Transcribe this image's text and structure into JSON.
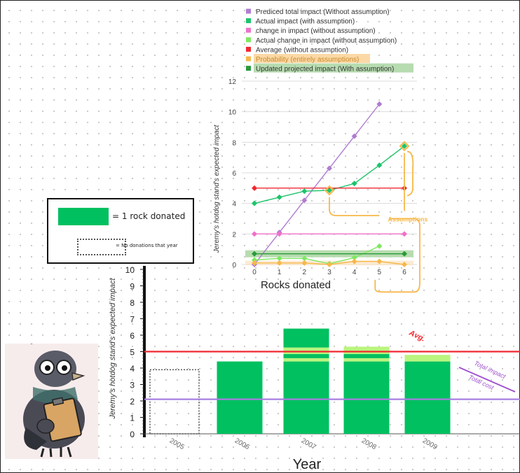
{
  "top_chart_legend": [
    {
      "label": "Prediced total impact (Without assumption)",
      "color": "#b07cd0"
    },
    {
      "label": "Actual impact (with assumption)",
      "color": "#1cc46a"
    },
    {
      "label": "change in impact (without assumption)",
      "color": "#f070c8"
    },
    {
      "label": "Actual change in impact (without assumption)",
      "color": "#7ee860"
    },
    {
      "label": "Average (without assumption)",
      "color": "#f02830"
    },
    {
      "label": "Probability (entirely assumptions)",
      "color": "#f7b84a",
      "highlight": "#fbd9a6"
    },
    {
      "label": "Updated projected impact (With assumption)",
      "color": "#2a9a3a",
      "highlight": "#b7dcb0"
    }
  ],
  "bottom_legend": {
    "solid_label": "= 1 rock donated",
    "dashed_label": "= No donations that year"
  },
  "annotations": {
    "assumptions": "Assumptions",
    "avg": "Avg.",
    "total_impact": "Total impact",
    "total_cost": "Total cost"
  },
  "chart_data": [
    {
      "type": "line",
      "xlabel": "Rocks donated",
      "ylabel": "Jeremy's hotdog stand's expected impact",
      "x": [
        0,
        1,
        2,
        3,
        4,
        5,
        6
      ],
      "ylim": [
        0,
        12
      ],
      "yticks": [
        0,
        2,
        4,
        6,
        8,
        10,
        12
      ],
      "grid": true,
      "legend_position": "top",
      "series": [
        {
          "name": "Prediced total impact (Without assumption)",
          "color": "#b07cd0",
          "x": [
            0,
            1,
            2,
            3,
            4,
            5
          ],
          "y": [
            0,
            2.1,
            4.2,
            6.3,
            8.4,
            10.5
          ]
        },
        {
          "name": "Actual impact (with assumption)",
          "color": "#1cc46a",
          "x": [
            0,
            1,
            2,
            3,
            4,
            5,
            6
          ],
          "y": [
            4.0,
            4.4,
            4.8,
            4.85,
            5.3,
            6.5,
            7.75
          ]
        },
        {
          "name": "change in impact (without assumption)",
          "color": "#f070c8",
          "x": [
            0,
            1,
            6
          ],
          "y": [
            2,
            2,
            2
          ]
        },
        {
          "name": "Actual change in impact (without assumption)",
          "color": "#7ee860",
          "x": [
            0,
            1,
            2,
            3,
            4,
            5
          ],
          "y": [
            0.3,
            0.4,
            0.4,
            0.05,
            0.45,
            1.2
          ]
        },
        {
          "name": "Average (without assumption)",
          "color": "#f02830",
          "x": [
            0,
            6
          ],
          "y": [
            5,
            5
          ]
        },
        {
          "name": "Probability (entirely assumptions)",
          "color": "#f7b84a",
          "x": [
            0,
            1,
            2,
            3,
            4,
            5,
            6
          ],
          "y": [
            0.1,
            0.1,
            0.1,
            0.0,
            0.2,
            0.2,
            0.0
          ],
          "extra_points": [
            [
              3,
              4.85
            ],
            [
              6,
              7.75
            ]
          ]
        },
        {
          "name": "Updated projected impact (With assumption)",
          "color": "#2a9a3a",
          "x": [
            0,
            6
          ],
          "y": [
            0.7,
            0.7
          ]
        }
      ]
    },
    {
      "type": "bar",
      "xlabel": "Year",
      "ylabel": "Jeremy's hotdog stand's expected impact",
      "categories": [
        "2005",
        "2006",
        "2007",
        "2008",
        "2009"
      ],
      "ylim": [
        0,
        10
      ],
      "yticks": [
        0,
        1,
        2,
        3,
        4,
        5,
        6,
        7,
        8,
        9,
        10
      ],
      "values": [
        0,
        4.4,
        6.4,
        5.3,
        4.8
      ],
      "no_donation_value": 3.9,
      "segments": [
        [],
        [
          {
            "from": 0,
            "to": 4.4,
            "color": "#00c060"
          }
        ],
        [
          {
            "from": 0,
            "to": 4.4,
            "color": "#00c060"
          },
          {
            "from": 4.4,
            "to": 4.6,
            "color": "#b9f57e"
          },
          {
            "from": 4.6,
            "to": 4.85,
            "color": "#00c060"
          },
          {
            "from": 4.85,
            "to": 5.25,
            "color": "#b9f57e"
          },
          {
            "from": 5.25,
            "to": 6.4,
            "color": "#00c060"
          }
        ],
        [
          {
            "from": 0,
            "to": 4.4,
            "color": "#00c060"
          },
          {
            "from": 4.4,
            "to": 4.6,
            "color": "#b9f57e"
          },
          {
            "from": 4.6,
            "to": 4.85,
            "color": "#00c060"
          },
          {
            "from": 4.85,
            "to": 5.3,
            "color": "#b9f57e"
          }
        ],
        [
          {
            "from": 0,
            "to": 4.4,
            "color": "#00c060"
          },
          {
            "from": 4.4,
            "to": 4.8,
            "color": "#b9f57e"
          }
        ]
      ],
      "reference_lines": [
        {
          "name": "Average",
          "value": 5.0,
          "color": "#f02830"
        },
        {
          "name": "Total cost",
          "value": 2.1,
          "color": "#a77ee0"
        }
      ]
    }
  ]
}
